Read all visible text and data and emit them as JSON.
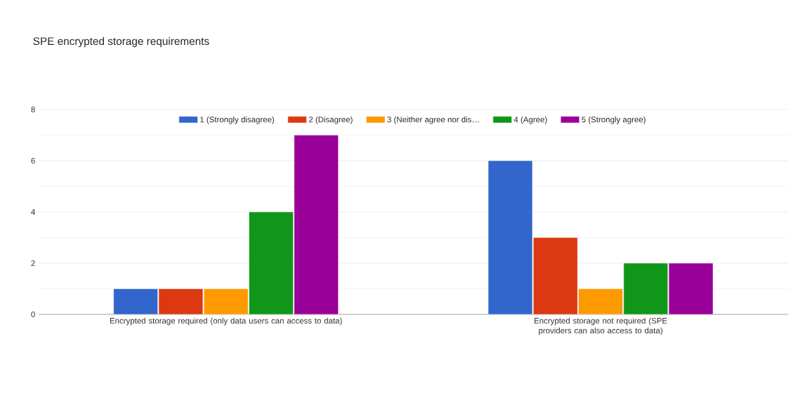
{
  "chart_data": {
    "type": "bar",
    "title": "SPE encrypted storage requirements",
    "categories": [
      "Encrypted storage required (only data users can access to data)",
      "Encrypted storage not required (SPE providers can also access to data)"
    ],
    "series": [
      {
        "name": "1 (Strongly disagree)",
        "color": "#3366cc",
        "values": [
          1,
          6
        ]
      },
      {
        "name": "2 (Disagree)",
        "color": "#dc3912",
        "values": [
          1,
          3
        ]
      },
      {
        "name": "3 (Neither agree nor dis…",
        "color": "#ff9900",
        "values": [
          1,
          1
        ]
      },
      {
        "name": "4 (Agree)",
        "color": "#109618",
        "values": [
          4,
          2
        ]
      },
      {
        "name": "5 (Strongly agree)",
        "color": "#990099",
        "values": [
          7,
          2
        ]
      }
    ],
    "ylim": [
      0,
      8
    ],
    "yticks": [
      0,
      2,
      4,
      6,
      8
    ],
    "grid": true,
    "legend": "top"
  }
}
